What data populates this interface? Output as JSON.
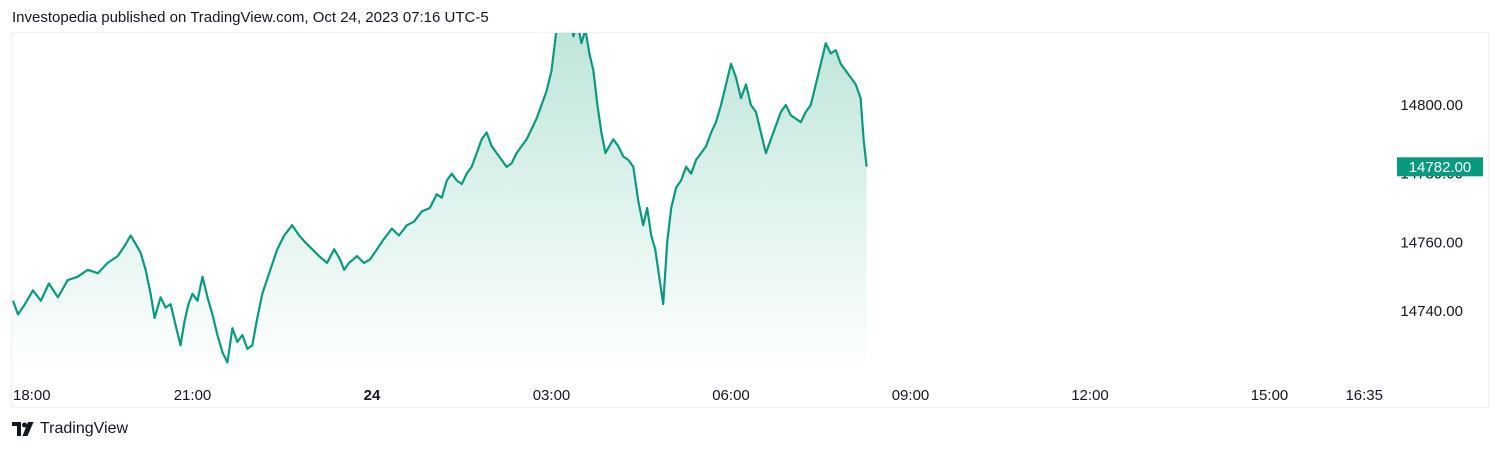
{
  "header": {
    "publisher_text": "Investopedia published on TradingView.com, Oct 24, 2023 07:16 UTC-5"
  },
  "footer": {
    "brand": "TradingView"
  },
  "colors": {
    "line": "#089981",
    "fill_top": "#b9e3d7",
    "fill_bottom": "#ffffff",
    "last_price_bg": "#089981"
  },
  "chart_data": {
    "type": "area",
    "title": "",
    "xlabel": "",
    "ylabel": "",
    "last_price": "14782.00",
    "ylim": [
      14730,
      14835
    ],
    "x_ticks": [
      {
        "label": "18:00",
        "t": 0,
        "bold": false
      },
      {
        "label": "21:00",
        "t": 180,
        "bold": false
      },
      {
        "label": "24",
        "t": 360,
        "bold": true
      },
      {
        "label": "03:00",
        "t": 540,
        "bold": false
      },
      {
        "label": "06:00",
        "t": 720,
        "bold": false
      },
      {
        "label": "09:00",
        "t": 900,
        "bold": false
      },
      {
        "label": "12:00",
        "t": 1080,
        "bold": false
      },
      {
        "label": "15:00",
        "t": 1260,
        "bold": false
      },
      {
        "label": "16:35",
        "t": 1355,
        "bold": false
      }
    ],
    "y_ticks": [
      14800.0,
      14780.0,
      14760.0,
      14740.0
    ],
    "y_tick_labels": [
      "14800.00",
      "14780.00",
      "14760.00",
      "14740.00"
    ],
    "series": [
      {
        "x_unit": "minutes since Oct 23 18:00 (UTC-5)",
        "points": [
          [
            0,
            14743
          ],
          [
            5,
            14739
          ],
          [
            12,
            14742
          ],
          [
            20,
            14746
          ],
          [
            28,
            14743
          ],
          [
            36,
            14748
          ],
          [
            45,
            14744
          ],
          [
            55,
            14749
          ],
          [
            65,
            14750
          ],
          [
            75,
            14752
          ],
          [
            85,
            14751
          ],
          [
            95,
            14754
          ],
          [
            105,
            14756
          ],
          [
            112,
            14759
          ],
          [
            118,
            14762
          ],
          [
            122,
            14760
          ],
          [
            128,
            14757
          ],
          [
            133,
            14752
          ],
          [
            138,
            14745
          ],
          [
            142,
            14738
          ],
          [
            148,
            14744
          ],
          [
            153,
            14741
          ],
          [
            158,
            14742
          ],
          [
            163,
            14736
          ],
          [
            168,
            14730
          ],
          [
            172,
            14737
          ],
          [
            176,
            14742
          ],
          [
            180,
            14745
          ],
          [
            185,
            14743
          ],
          [
            190,
            14750
          ],
          [
            195,
            14744
          ],
          [
            200,
            14739
          ],
          [
            205,
            14733
          ],
          [
            210,
            14728
          ],
          [
            215,
            14725
          ],
          [
            220,
            14735
          ],
          [
            225,
            14731
          ],
          [
            230,
            14733
          ],
          [
            235,
            14729
          ],
          [
            240,
            14730
          ],
          [
            245,
            14738
          ],
          [
            250,
            14745
          ],
          [
            258,
            14752
          ],
          [
            265,
            14758
          ],
          [
            272,
            14762
          ],
          [
            280,
            14765
          ],
          [
            287,
            14762
          ],
          [
            293,
            14760
          ],
          [
            300,
            14758
          ],
          [
            307,
            14756
          ],
          [
            315,
            14754
          ],
          [
            322,
            14758
          ],
          [
            328,
            14755
          ],
          [
            332,
            14752
          ],
          [
            337,
            14754
          ],
          [
            345,
            14756
          ],
          [
            352,
            14754
          ],
          [
            358,
            14755
          ],
          [
            365,
            14758
          ],
          [
            372,
            14761
          ],
          [
            380,
            14764
          ],
          [
            387,
            14762
          ],
          [
            395,
            14765
          ],
          [
            402,
            14766
          ],
          [
            410,
            14769
          ],
          [
            418,
            14770
          ],
          [
            425,
            14774
          ],
          [
            430,
            14773
          ],
          [
            435,
            14778
          ],
          [
            440,
            14780
          ],
          [
            445,
            14778
          ],
          [
            450,
            14777
          ],
          [
            455,
            14780
          ],
          [
            460,
            14782
          ],
          [
            465,
            14786
          ],
          [
            470,
            14790
          ],
          [
            475,
            14792
          ],
          [
            480,
            14788
          ],
          [
            485,
            14786
          ],
          [
            490,
            14784
          ],
          [
            495,
            14782
          ],
          [
            500,
            14783
          ],
          [
            505,
            14786
          ],
          [
            510,
            14788
          ],
          [
            515,
            14790
          ],
          [
            520,
            14793
          ],
          [
            525,
            14796
          ],
          [
            530,
            14800
          ],
          [
            535,
            14804
          ],
          [
            540,
            14810
          ],
          [
            545,
            14822
          ],
          [
            550,
            14828
          ],
          [
            554,
            14831
          ],
          [
            558,
            14826
          ],
          [
            562,
            14820
          ],
          [
            566,
            14824
          ],
          [
            570,
            14818
          ],
          [
            574,
            14822
          ],
          [
            578,
            14815
          ],
          [
            582,
            14810
          ],
          [
            586,
            14800
          ],
          [
            590,
            14792
          ],
          [
            594,
            14786
          ],
          [
            598,
            14788
          ],
          [
            602,
            14790
          ],
          [
            607,
            14788
          ],
          [
            612,
            14785
          ],
          [
            617,
            14784
          ],
          [
            622,
            14782
          ],
          [
            627,
            14772
          ],
          [
            632,
            14765
          ],
          [
            636,
            14770
          ],
          [
            640,
            14762
          ],
          [
            644,
            14758
          ],
          [
            648,
            14750
          ],
          [
            652,
            14742
          ],
          [
            656,
            14760
          ],
          [
            660,
            14770
          ],
          [
            665,
            14776
          ],
          [
            670,
            14778
          ],
          [
            675,
            14782
          ],
          [
            680,
            14780
          ],
          [
            685,
            14784
          ],
          [
            690,
            14786
          ],
          [
            695,
            14788
          ],
          [
            700,
            14792
          ],
          [
            705,
            14795
          ],
          [
            710,
            14800
          ],
          [
            715,
            14806
          ],
          [
            720,
            14812
          ],
          [
            725,
            14808
          ],
          [
            730,
            14802
          ],
          [
            735,
            14806
          ],
          [
            740,
            14800
          ],
          [
            745,
            14798
          ],
          [
            750,
            14792
          ],
          [
            755,
            14786
          ],
          [
            760,
            14790
          ],
          [
            765,
            14794
          ],
          [
            770,
            14798
          ],
          [
            775,
            14800
          ],
          [
            780,
            14797
          ],
          [
            785,
            14796
          ],
          [
            790,
            14795
          ],
          [
            795,
            14798
          ],
          [
            800,
            14800
          ],
          [
            805,
            14806
          ],
          [
            810,
            14812
          ],
          [
            815,
            14818
          ],
          [
            820,
            14815
          ],
          [
            825,
            14816
          ],
          [
            830,
            14812
          ],
          [
            835,
            14810
          ],
          [
            840,
            14808
          ],
          [
            845,
            14806
          ],
          [
            850,
            14802
          ],
          [
            853,
            14790
          ],
          [
            856,
            14782
          ]
        ]
      }
    ]
  }
}
